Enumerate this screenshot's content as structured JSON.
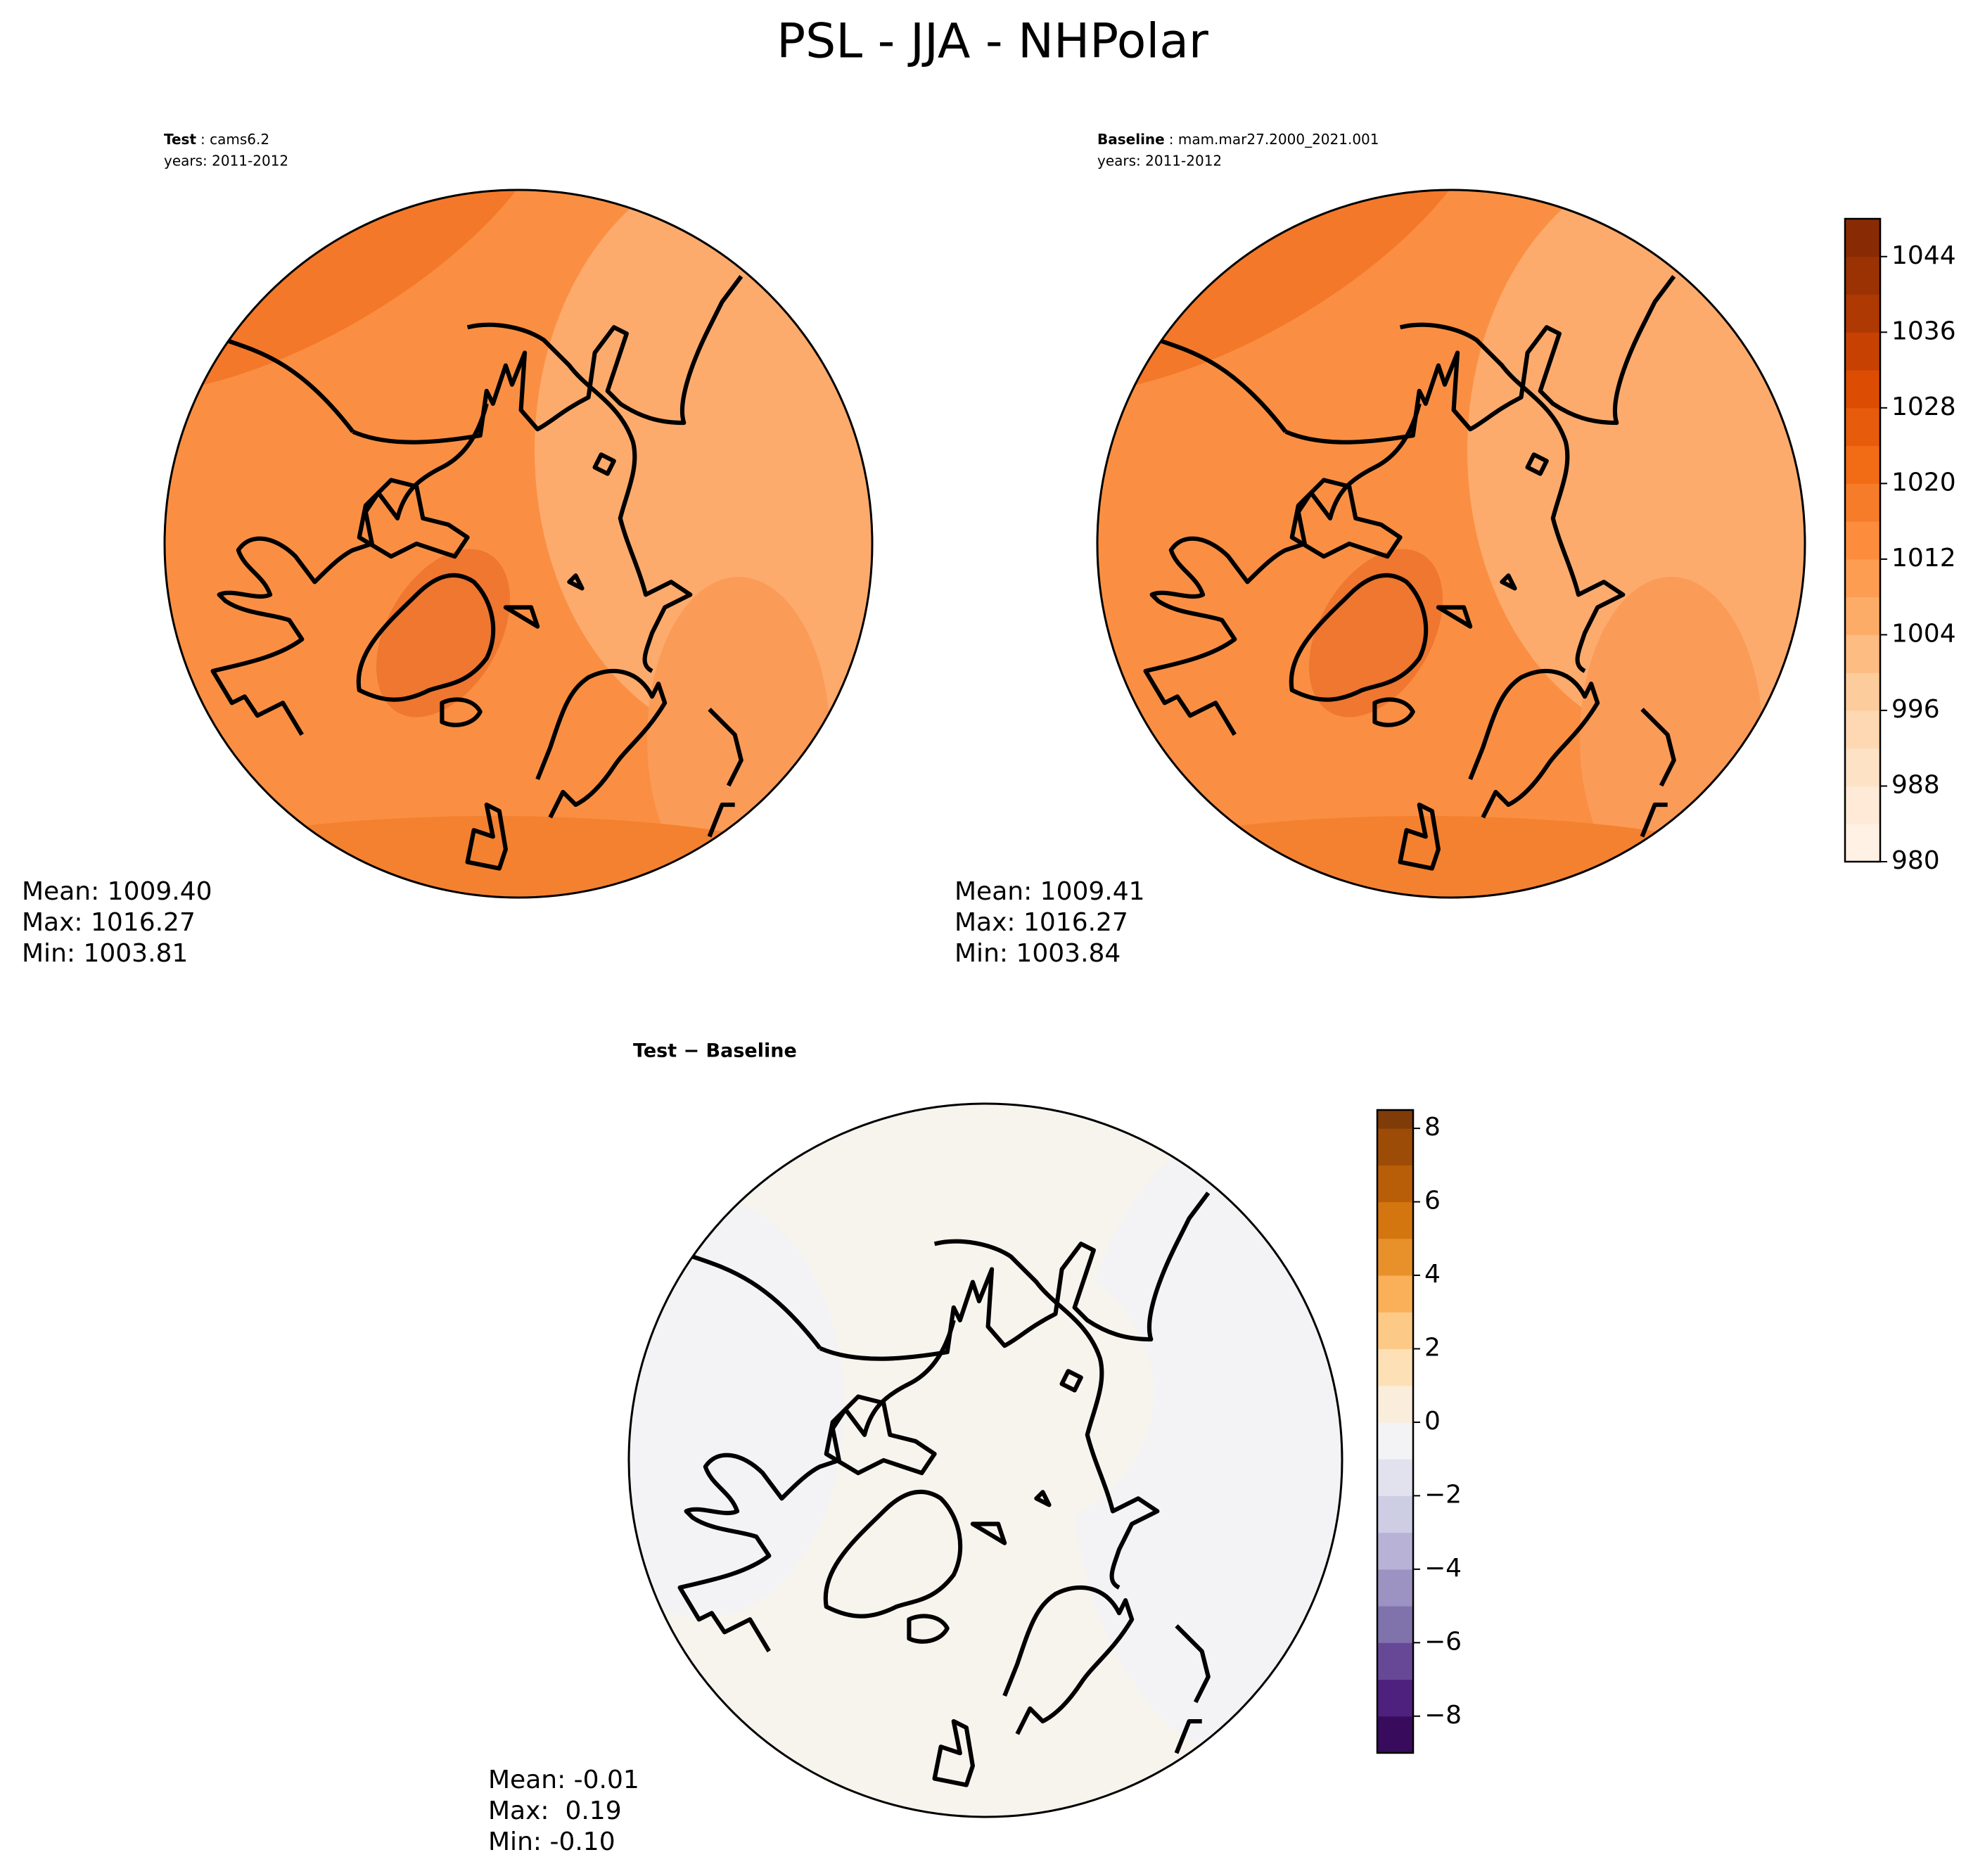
{
  "title": "PSL - JJA - NHPolar",
  "panels": [
    {
      "title_bold": "Test",
      "title_rest": ": cams6.2",
      "years": "years: 2011-2012",
      "stats": [
        "Mean: 1009.40",
        "Max: 1016.27",
        "Min: 1003.81"
      ]
    },
    {
      "title_bold": "Baseline",
      "title_rest": ": mam.mar27.2000_2021.001",
      "years": "years: 2011-2012",
      "stats": [
        "Mean: 1009.41",
        "Max: 1016.27",
        "Min: 1003.84"
      ]
    },
    {
      "title_bold": "Test − Baseline",
      "stats": [
        "Mean: -0.01",
        "Max:  0.19",
        "Min: -0.10"
      ]
    }
  ],
  "colorbars": [
    {
      "colormap": "Oranges",
      "lim": [
        980,
        1048
      ],
      "ticks": [
        980,
        988,
        996,
        1004,
        1012,
        1020,
        1028,
        1036,
        1044
      ]
    },
    {
      "colormap": "PuOr_r",
      "lim": [
        -9,
        8.5
      ],
      "ticks": [
        {
          "value": -8,
          "label": "−8"
        },
        {
          "value": -6,
          "label": "−6"
        },
        {
          "value": -4,
          "label": "−4"
        },
        {
          "value": -2,
          "label": "−2"
        },
        0,
        2,
        4,
        6,
        8
      ]
    }
  ]
}
